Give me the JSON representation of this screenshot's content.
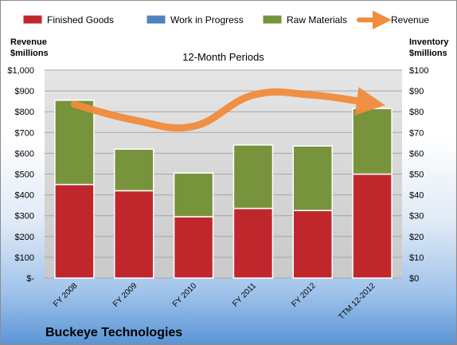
{
  "chart_data": {
    "type": "bar",
    "title": "12-Month Periods",
    "company": "Buckeye Technologies",
    "categories": [
      "FY 2008",
      "FY 2009",
      "FY 2010",
      "FY 2011",
      "FY 2012",
      "TTM 12-2012"
    ],
    "series": [
      {
        "name": "Finished Goods",
        "axis": "right",
        "color": "#c0272d",
        "values": [
          45,
          42,
          29.5,
          33.5,
          32.5,
          50
        ]
      },
      {
        "name": "Work in Progress",
        "axis": "right",
        "color": "#4f81bd",
        "values": [
          0,
          0,
          0,
          0,
          0,
          0
        ]
      },
      {
        "name": "Raw Materials",
        "axis": "right",
        "color": "#77933c",
        "values": [
          40.5,
          20,
          21,
          30.5,
          31,
          31.5
        ]
      },
      {
        "name": "Revenue",
        "axis": "left",
        "type": "line",
        "color": "#f08c3c",
        "values": [
          835,
          760,
          730,
          880,
          880,
          840
        ]
      }
    ],
    "left_axis": {
      "label": "Revenue\n$millions",
      "ylim": [
        0,
        1000
      ],
      "ticks": [
        "$-",
        "$100",
        "$200",
        "$300",
        "$400",
        "$500",
        "$600",
        "$700",
        "$800",
        "$900",
        "$1,000"
      ]
    },
    "right_axis": {
      "label": "Inventory\n$millions",
      "ylim": [
        0,
        100
      ],
      "ticks": [
        "$0",
        "$10",
        "$20",
        "$30",
        "$40",
        "$50",
        "$60",
        "$70",
        "$80",
        "$90",
        "$100"
      ]
    },
    "grid": true,
    "legend_position": "top"
  }
}
